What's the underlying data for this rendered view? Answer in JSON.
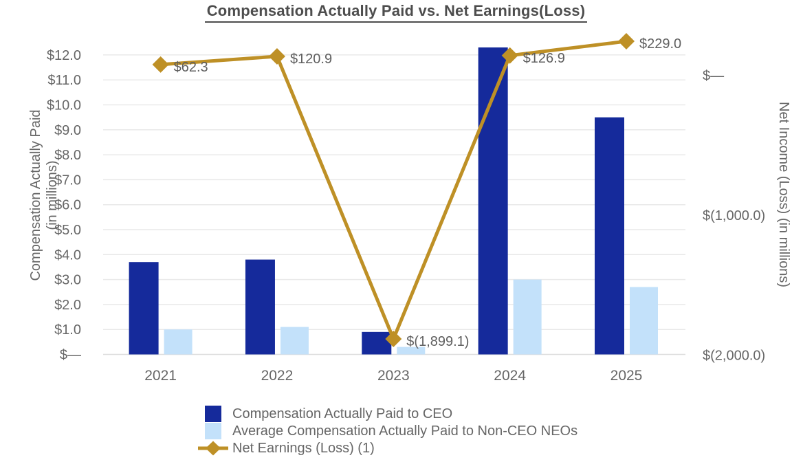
{
  "chart_data": {
    "type": "combo-bar-line",
    "title": "Compensation Actually Paid vs. Net Earnings(Loss)",
    "categories": [
      "2021",
      "2022",
      "2023",
      "2024",
      "2025"
    ],
    "bar_series": [
      {
        "name": "Compensation Actually Paid to CEO",
        "color": "#152A9B",
        "values": [
          3.7,
          3.8,
          0.9,
          12.3,
          9.5
        ]
      },
      {
        "name": "Average Compensation Actually Paid to Non-CEO NEOs",
        "color": "#C3E1FA",
        "values": [
          1.0,
          1.1,
          0.3,
          3.0,
          2.7
        ]
      }
    ],
    "line_series": {
      "name": "Net Earnings (Loss) (1)",
      "color": "#BE9026",
      "values": [
        62.3,
        120.9,
        -1899.1,
        126.9,
        229.0
      ],
      "labels": [
        "$62.3",
        "$120.9",
        "$(1,899.1)",
        "$126.9",
        "$229.0"
      ]
    },
    "left_axis": {
      "title_lines": [
        "Compensation Actually Paid",
        "(in millions)"
      ],
      "range": [
        0,
        12
      ],
      "ticks": [
        {
          "label": "$12.0",
          "value": 12
        },
        {
          "label": "$11.0",
          "value": 11
        },
        {
          "label": "$10.0",
          "value": 10
        },
        {
          "label": "$9.0",
          "value": 9
        },
        {
          "label": "$8.0",
          "value": 8
        },
        {
          "label": "$7.0",
          "value": 7
        },
        {
          "label": "$6.0",
          "value": 6
        },
        {
          "label": "$5.0",
          "value": 5
        },
        {
          "label": "$4.0",
          "value": 4
        },
        {
          "label": "$3.0",
          "value": 3
        },
        {
          "label": "$2.0",
          "value": 2
        },
        {
          "label": "$1.0",
          "value": 1
        },
        {
          "label": "$—",
          "value": 0
        }
      ]
    },
    "right_axis": {
      "title": "Net Income (Loss) (in millions)",
      "ticks": [
        {
          "label": "$—",
          "value": 0
        },
        {
          "label": "$(1,000.0)",
          "value": -1000
        },
        {
          "label": "$(2,000.0)",
          "value": -2000
        }
      ]
    },
    "grid": true,
    "legend_position": "bottom-left",
    "colors": {
      "grid_line": "#e9e9e9",
      "base_line": "#dcdcdc",
      "tick_text": "#666666",
      "data_label_text": "#5e5e5e",
      "title_text": "#4d4d4d"
    }
  }
}
